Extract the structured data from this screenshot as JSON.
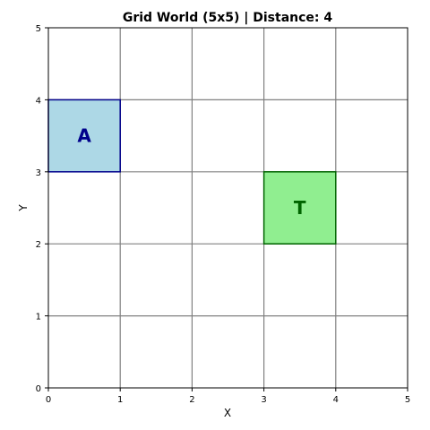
{
  "title": "Grid World (5x5) | Distance: 4",
  "xlabel": "X",
  "ylabel": "Y",
  "grid": {
    "cols": 5,
    "rows": 5,
    "xlim": [
      0,
      5
    ],
    "ylim": [
      0,
      5
    ],
    "xticks": [
      "0",
      "1",
      "2",
      "3",
      "4",
      "5"
    ],
    "yticks": [
      "0",
      "1",
      "2",
      "3",
      "4",
      "5"
    ],
    "grid_on": true
  },
  "cells": [
    {
      "id": "agent",
      "label": "A",
      "x": 0,
      "y": 3,
      "fill": "#add8e6",
      "stroke": "#00008b",
      "text_color": "#00008b"
    },
    {
      "id": "target",
      "label": "T",
      "x": 3,
      "y": 2,
      "fill": "#90ee90",
      "stroke": "#006400",
      "text_color": "#006400"
    }
  ],
  "colors": {
    "gridline": "#808080",
    "axis": "#000000",
    "background": "#ffffff"
  }
}
